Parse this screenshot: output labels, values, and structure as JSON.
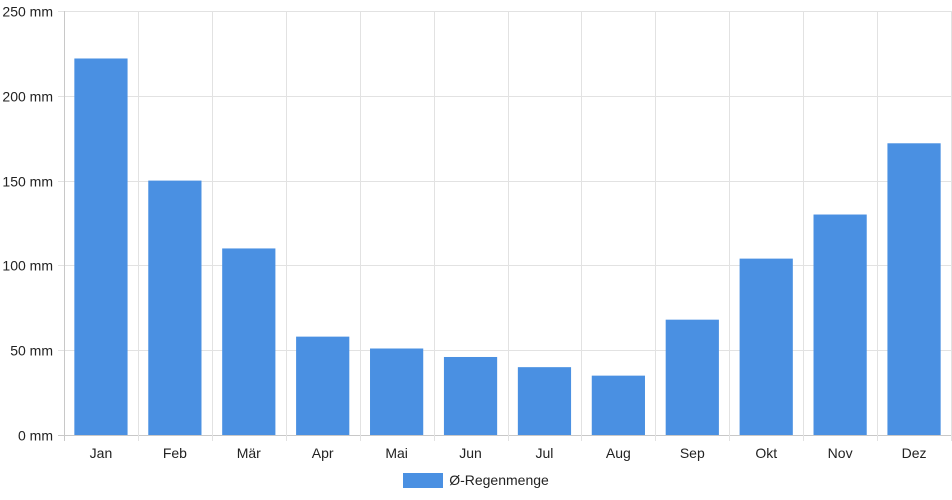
{
  "chart_data": {
    "type": "bar",
    "categories": [
      "Jan",
      "Feb",
      "Mär",
      "Apr",
      "Mai",
      "Jun",
      "Jul",
      "Aug",
      "Sep",
      "Okt",
      "Nov",
      "Dez"
    ],
    "series": [
      {
        "name": "Ø-Regenmenge",
        "values": [
          222,
          150,
          110,
          58,
          51,
          46,
          40,
          35,
          68,
          104,
          130,
          172
        ],
        "color": "#4a90e2"
      }
    ],
    "yticks": [
      "0 mm",
      "50 mm",
      "100 mm",
      "150 mm",
      "200 mm",
      "250 mm"
    ],
    "ylim": [
      0,
      250
    ],
    "unit": "mm",
    "grid": true,
    "legend_position": "bottom-center",
    "title": "",
    "xlabel": "",
    "ylabel": ""
  }
}
